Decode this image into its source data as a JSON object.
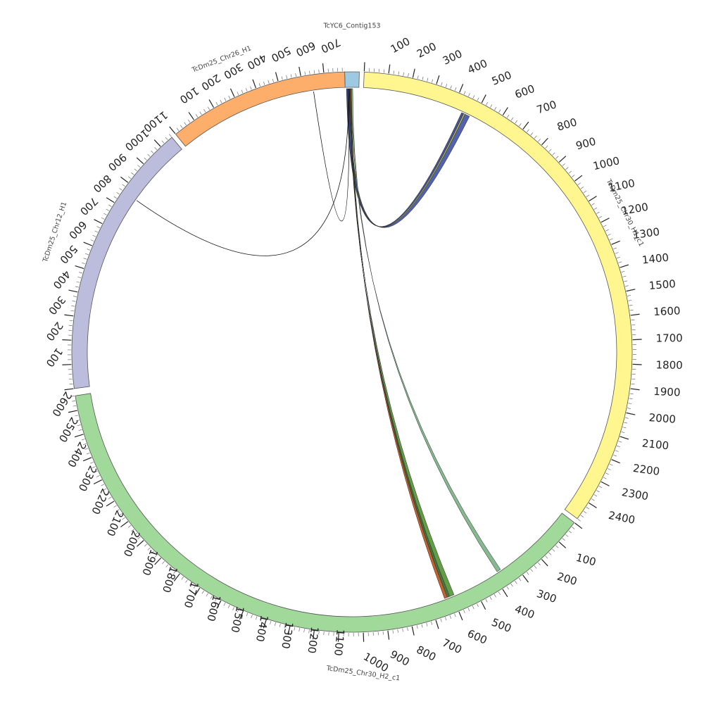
{
  "chromosomes": [
    {
      "id": "contig153",
      "label": "TcYC6_Contig153",
      "color": "#9ecae1",
      "length_kb": 40,
      "show_ticks": false
    },
    {
      "id": "chr30h1",
      "label": "TcDm25_Chr30_H1_c1",
      "color": "#fff68f",
      "length_kb": 2480
    },
    {
      "id": "chr30h2",
      "label": "TcDm25_Chr30_H2_c1",
      "color": "#a1d99b",
      "length_kb": 2660
    },
    {
      "id": "chr12h1",
      "label": "TcDm25_Chr12_H1",
      "color": "#bcbddc",
      "length_kb": 1160
    },
    {
      "id": "chr26h1",
      "label": "TcDm25_Chr26_H1",
      "color": "#fdae6b",
      "length_kb": 790
    }
  ],
  "tick_labels": {
    "contig153": [],
    "chr30h1": [
      "100",
      "200",
      "300",
      "400",
      "500",
      "600",
      "700",
      "800",
      "900",
      "1000",
      "1100",
      "1200",
      "1300",
      "1400",
      "1500",
      "1600",
      "1700",
      "1800",
      "1900",
      "2000",
      "2100",
      "2200",
      "2300",
      "2400"
    ],
    "chr30h2": [
      "100",
      "200",
      "300",
      "400",
      "500",
      "600",
      "700",
      "800",
      "900",
      "1000",
      "1100",
      "1200",
      "1300",
      "1400",
      "1500",
      "1600",
      "1700",
      "1800",
      "1900",
      "2000",
      "2100",
      "2200",
      "2300",
      "2400",
      "2500",
      "2600"
    ],
    "chr12h1": [
      "100",
      "200",
      "300",
      "400",
      "500",
      "600",
      "700",
      "800",
      "900",
      "1000",
      "1100"
    ],
    "chr26h1": [
      "100",
      "200",
      "300",
      "400",
      "500",
      "600",
      "700"
    ]
  },
  "links": [
    {
      "from": "contig153",
      "from_start": 5,
      "from_end": 12,
      "to": "chr30h1",
      "to_start": 455,
      "to_end": 480,
      "color": "#4a5aa8",
      "kind": "ribbon"
    },
    {
      "from": "contig153",
      "from_start": 12,
      "from_end": 14,
      "to": "chr30h1",
      "to_start": 450,
      "to_end": 458,
      "color": "#c8c84a",
      "kind": "ribbon"
    },
    {
      "from": "contig153",
      "from_start": 4,
      "from_end": 7,
      "to": "chr30h1",
      "to_start": 442,
      "to_end": 452,
      "color": "#3d4b8f",
      "kind": "ribbon"
    },
    {
      "from": "contig153",
      "from_start": 18,
      "from_end": 22,
      "to": "chr30h2",
      "to_start": 362,
      "to_end": 380,
      "color": "#7fb58a",
      "kind": "ribbon"
    },
    {
      "from": "contig153",
      "from_start": 14,
      "from_end": 18,
      "to": "chr30h2",
      "to_start": 592,
      "to_end": 612,
      "color": "#5a9a3a",
      "kind": "ribbon"
    },
    {
      "from": "contig153",
      "from_start": 13,
      "from_end": 15,
      "to": "chr30h2",
      "to_start": 614,
      "to_end": 622,
      "color": "#3a7a2a",
      "kind": "ribbon"
    },
    {
      "from": "contig153",
      "from_start": 15,
      "from_end": 17,
      "to": "chr30h2",
      "to_start": 624,
      "to_end": 636,
      "color": "#c85a20",
      "kind": "ribbon"
    },
    {
      "from": "contig153",
      "from_start": 10,
      "from_end": 10,
      "to": "chr12h1",
      "to_start": 860,
      "to_end": 860,
      "color": "#111111",
      "kind": "line"
    },
    {
      "from": "contig153",
      "from_start": 11,
      "from_end": 11,
      "to": "chr26h1",
      "to_start": 645,
      "to_end": 645,
      "color": "#8b1a1a",
      "kind": "line"
    }
  ]
}
